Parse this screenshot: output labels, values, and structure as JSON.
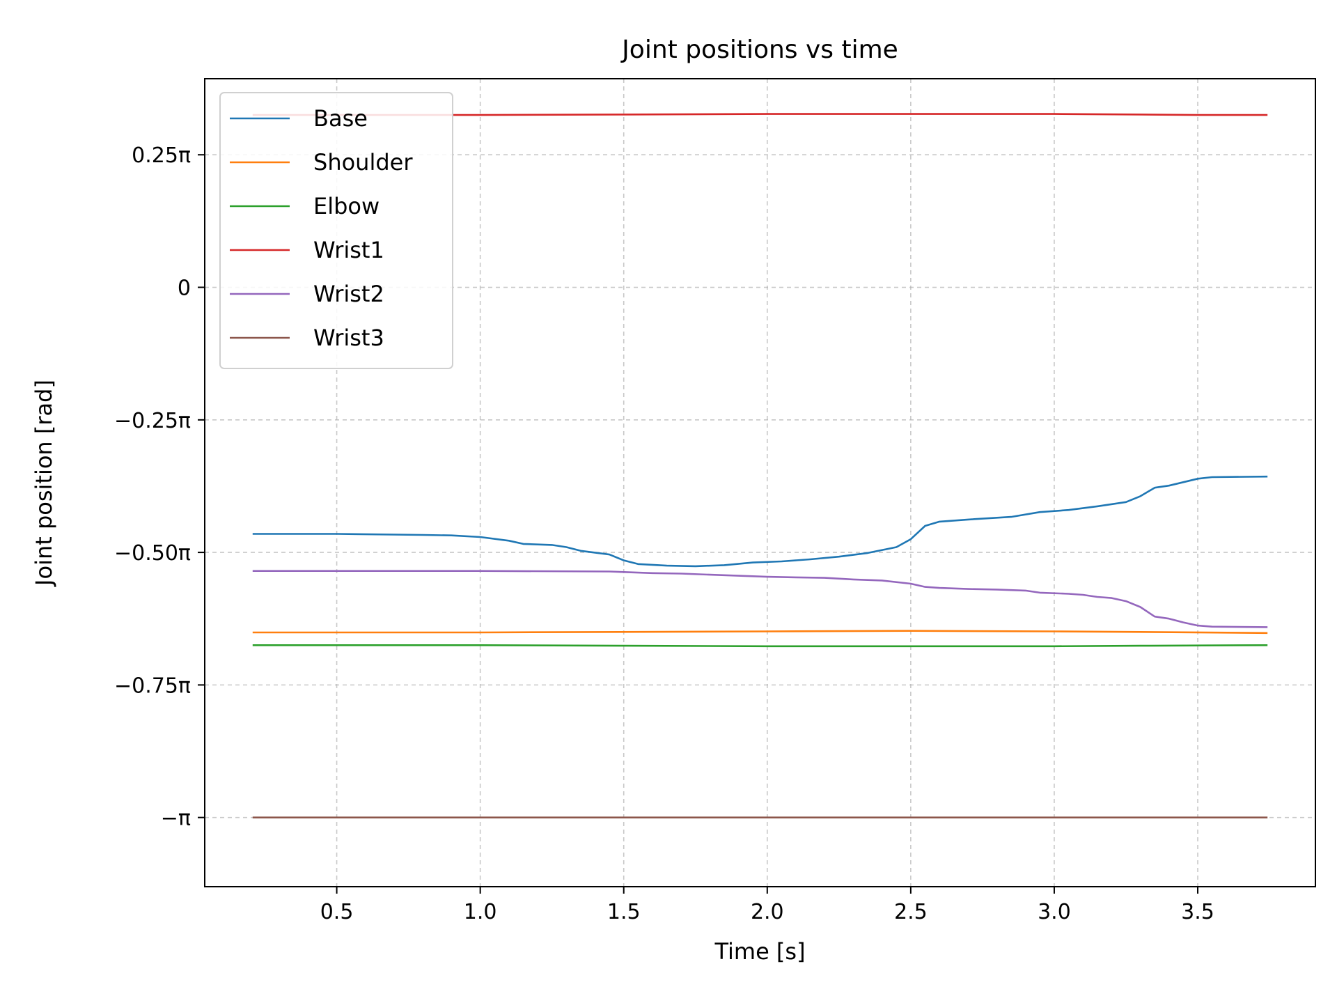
{
  "chart_data": {
    "type": "line",
    "title": "Joint positions vs time",
    "xlabel": "Time [s]",
    "ylabel": "Joint position [rad]",
    "xlim": [
      0.04,
      3.91
    ],
    "ylim": [
      -1.1305,
      0.3935
    ],
    "y_unit_factor": "pi",
    "xticks": [
      {
        "value": 0.5,
        "label": "0.5"
      },
      {
        "value": 1.0,
        "label": "1.0"
      },
      {
        "value": 1.5,
        "label": "1.5"
      },
      {
        "value": 2.0,
        "label": "2.0"
      },
      {
        "value": 2.5,
        "label": "2.5"
      },
      {
        "value": 3.0,
        "label": "3.0"
      },
      {
        "value": 3.5,
        "label": "3.5"
      }
    ],
    "yticks": [
      {
        "value": 0.25,
        "label": "0.25π"
      },
      {
        "value": 0,
        "label": "0"
      },
      {
        "value": -0.25,
        "label": "−0.25π"
      },
      {
        "value": -0.5,
        "label": "−0.50π"
      },
      {
        "value": -0.75,
        "label": "−0.75π"
      },
      {
        "value": -1,
        "label": "−π"
      }
    ],
    "grid": true,
    "legend_position": "top-left",
    "series": [
      {
        "name": "Base",
        "color": "#1f77b4",
        "x": [
          0.21,
          0.5,
          0.8,
          0.9,
          1.0,
          1.1,
          1.15,
          1.25,
          1.3,
          1.35,
          1.45,
          1.5,
          1.55,
          1.65,
          1.75,
          1.85,
          1.95,
          2.05,
          2.15,
          2.25,
          2.35,
          2.45,
          2.5,
          2.55,
          2.6,
          2.7,
          2.85,
          2.95,
          3.05,
          3.15,
          3.25,
          3.3,
          3.35,
          3.4,
          3.5,
          3.55,
          3.74
        ],
        "y": [
          -0.465,
          -0.465,
          -0.467,
          -0.468,
          -0.471,
          -0.478,
          -0.484,
          -0.486,
          -0.49,
          -0.497,
          -0.504,
          -0.515,
          -0.522,
          -0.525,
          -0.526,
          -0.524,
          -0.519,
          -0.517,
          -0.513,
          -0.508,
          -0.501,
          -0.49,
          -0.475,
          -0.45,
          -0.442,
          -0.438,
          -0.433,
          -0.424,
          -0.42,
          -0.413,
          -0.405,
          -0.394,
          -0.378,
          -0.374,
          -0.361,
          -0.358,
          -0.357
        ]
      },
      {
        "name": "Shoulder",
        "color": "#ff7f0e",
        "x": [
          0.21,
          1.0,
          2.0,
          2.5,
          3.0,
          3.3,
          3.74
        ],
        "y": [
          -0.651,
          -0.651,
          -0.649,
          -0.648,
          -0.649,
          -0.65,
          -0.652
        ]
      },
      {
        "name": "Elbow",
        "color": "#2ca02c",
        "x": [
          0.21,
          1.0,
          1.5,
          2.0,
          2.5,
          3.0,
          3.3,
          3.74
        ],
        "y": [
          -0.675,
          -0.675,
          -0.676,
          -0.677,
          -0.677,
          -0.677,
          -0.676,
          -0.675
        ]
      },
      {
        "name": "Wrist1",
        "color": "#d62728",
        "x": [
          0.21,
          1.0,
          1.5,
          2.0,
          2.5,
          3.0,
          3.3,
          3.5,
          3.74
        ],
        "y": [
          0.325,
          0.325,
          0.326,
          0.327,
          0.327,
          0.327,
          0.326,
          0.325,
          0.325
        ]
      },
      {
        "name": "Wrist2",
        "color": "#9467bd",
        "x": [
          0.21,
          0.5,
          1.0,
          1.45,
          1.5,
          1.6,
          1.7,
          1.8,
          1.9,
          2.0,
          2.1,
          2.2,
          2.3,
          2.4,
          2.5,
          2.55,
          2.6,
          2.7,
          2.8,
          2.9,
          2.95,
          3.05,
          3.1,
          3.15,
          3.2,
          3.25,
          3.3,
          3.35,
          3.4,
          3.45,
          3.5,
          3.55,
          3.74
        ],
        "y": [
          -0.535,
          -0.535,
          -0.535,
          -0.536,
          -0.537,
          -0.539,
          -0.54,
          -0.542,
          -0.544,
          -0.546,
          -0.547,
          -0.548,
          -0.551,
          -0.553,
          -0.559,
          -0.565,
          -0.567,
          -0.569,
          -0.57,
          -0.572,
          -0.576,
          -0.578,
          -0.58,
          -0.584,
          -0.586,
          -0.592,
          -0.603,
          -0.621,
          -0.625,
          -0.632,
          -0.638,
          -0.64,
          -0.641
        ]
      },
      {
        "name": "Wrist3",
        "color": "#8c564b",
        "x": [
          0.21,
          1.0,
          2.0,
          3.0,
          3.74
        ],
        "y": [
          -1.0,
          -1.0,
          -1.0,
          -1.0,
          -1.0
        ]
      }
    ]
  }
}
